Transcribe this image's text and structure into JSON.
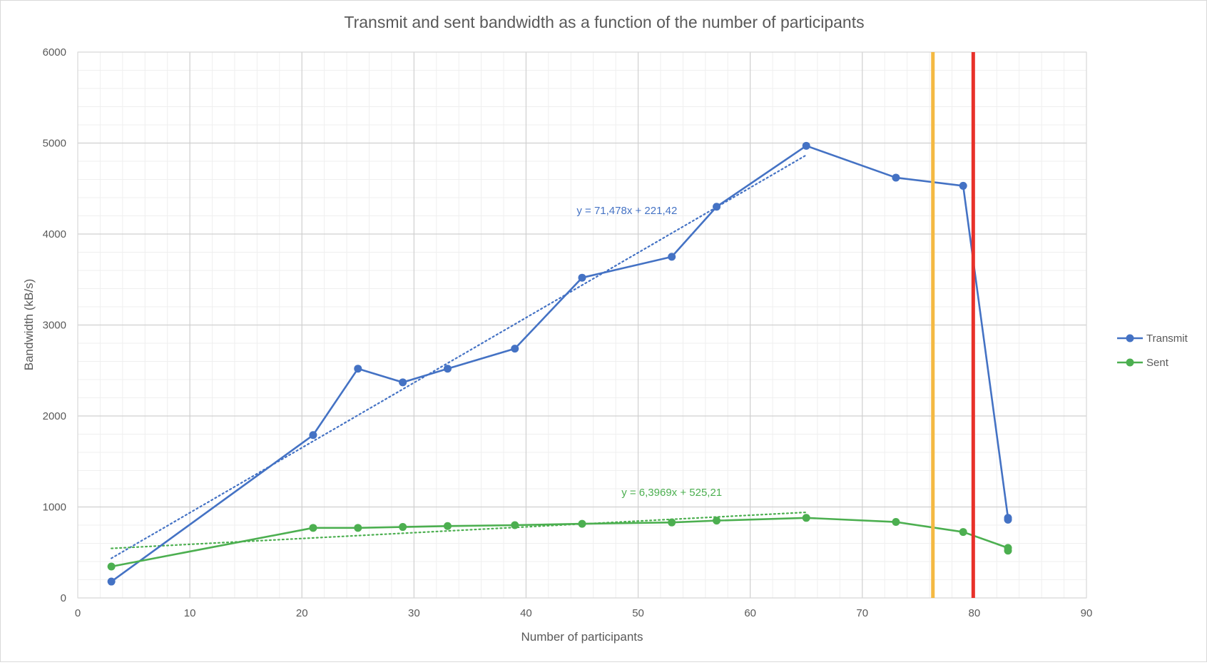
{
  "chart_data": {
    "type": "line",
    "title": "Transmit and sent bandwidth as a function of the number of participants",
    "xlabel": "Number of participants",
    "ylabel": "Bandwidth (kB/s)",
    "xlim": [
      0,
      90
    ],
    "ylim": [
      0,
      6000
    ],
    "x_ticks": [
      0,
      10,
      20,
      30,
      40,
      50,
      60,
      70,
      80,
      90
    ],
    "y_ticks": [
      0,
      1000,
      2000,
      3000,
      4000,
      5000,
      6000
    ],
    "x_minor_step": 2,
    "y_minor_step": 200,
    "grid": true,
    "legend_position": "right",
    "series": [
      {
        "name": "Transmit",
        "color": "#4472c4",
        "x": [
          3,
          21,
          25,
          29,
          33,
          39,
          45,
          53,
          57,
          65,
          73,
          79,
          83,
          83
        ],
        "values": [
          180,
          1790,
          2520,
          2370,
          2520,
          2740,
          3520,
          3750,
          4300,
          4970,
          4620,
          4530,
          880,
          860
        ],
        "trendline": {
          "label": "y = 71,478x + 221,42",
          "slope": 71.478,
          "intercept": 221.42,
          "x_range": [
            3,
            65
          ],
          "label_at": [
            49,
            4220
          ]
        }
      },
      {
        "name": "Sent",
        "color": "#4caf50",
        "x": [
          3,
          21,
          25,
          29,
          33,
          39,
          45,
          53,
          57,
          65,
          73,
          79,
          83,
          83
        ],
        "values": [
          345,
          770,
          770,
          780,
          790,
          800,
          815,
          830,
          850,
          880,
          835,
          725,
          550,
          520
        ],
        "trendline": {
          "label": "y = 6,3969x + 525,21",
          "slope": 6.3969,
          "intercept": 525.21,
          "x_range": [
            3,
            65
          ],
          "label_at": [
            53,
            1120
          ]
        }
      }
    ],
    "vertical_lines": [
      {
        "x": 76.3,
        "color": "#f4b942"
      },
      {
        "x": 79.9,
        "color": "#e8312a"
      }
    ]
  }
}
